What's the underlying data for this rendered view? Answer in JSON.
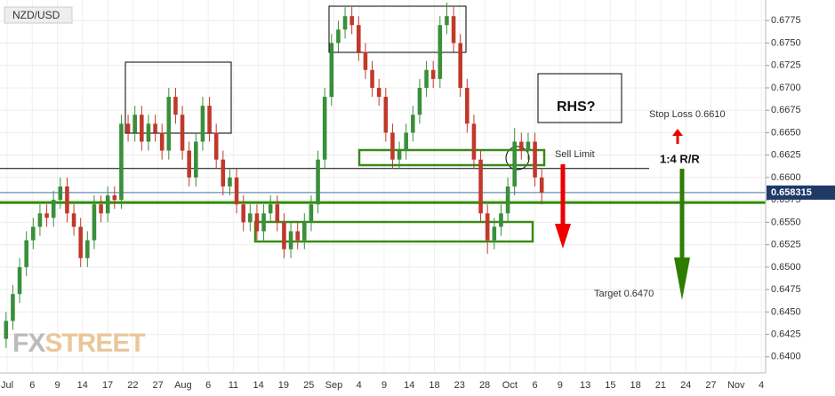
{
  "chart_data": {
    "type": "candlestick",
    "title": "NZD/USD",
    "ylim": [
      0.6382,
      0.6798
    ],
    "yticks": [
      {
        "value": 0.64,
        "label": "0.6400"
      },
      {
        "value": 0.6425,
        "label": "0.6425"
      },
      {
        "value": 0.645,
        "label": "0.6450"
      },
      {
        "value": 0.6475,
        "label": "0.6475"
      },
      {
        "value": 0.65,
        "label": "0.6500"
      },
      {
        "value": 0.6525,
        "label": "0.6525"
      },
      {
        "value": 0.655,
        "label": "0.6550"
      },
      {
        "value": 0.6575,
        "label": "0.6575"
      },
      {
        "value": 0.66,
        "label": "0.6600"
      },
      {
        "value": 0.6625,
        "label": "0.6625"
      },
      {
        "value": 0.665,
        "label": "0.6650"
      },
      {
        "value": 0.6675,
        "label": "0.6675"
      },
      {
        "value": 0.67,
        "label": "0.6700"
      },
      {
        "value": 0.6725,
        "label": "0.6725"
      },
      {
        "value": 0.675,
        "label": "0.6750"
      },
      {
        "value": 0.6775,
        "label": "0.6775"
      }
    ],
    "x_labels": [
      "Jul",
      "6",
      "9",
      "14",
      "17",
      "22",
      "27",
      "Aug",
      "6",
      "11",
      "14",
      "19",
      "25",
      "Sep",
      "4",
      "9",
      "14",
      "18",
      "23",
      "28",
      "Oct",
      "6",
      "9",
      "13",
      "15",
      "18",
      "21",
      "24",
      "27",
      "Nov",
      "4"
    ],
    "up_color": "#3a8f3a",
    "down_color": "#c0392b",
    "open": [
      0.642,
      0.644,
      0.647,
      0.65,
      0.653,
      0.6545,
      0.656,
      0.6555,
      0.6575,
      0.659,
      0.656,
      0.6545,
      0.651,
      0.653,
      0.657,
      0.656,
      0.658,
      0.6575,
      0.666,
      0.665,
      0.667,
      0.664,
      0.666,
      0.665,
      0.663,
      0.669,
      0.667,
      0.663,
      0.66,
      0.664,
      0.668,
      0.665,
      0.662,
      0.659,
      0.66,
      0.657,
      0.655,
      0.656,
      0.654,
      0.656,
      0.657,
      0.655,
      0.652,
      0.654,
      0.653,
      0.655,
      0.657,
      0.662,
      0.669,
      0.675,
      0.6765,
      0.678,
      0.677,
      0.674,
      0.672,
      0.67,
      0.669,
      0.665,
      0.662,
      0.663,
      0.665,
      0.667,
      0.67,
      0.672,
      0.671,
      0.677,
      0.678,
      0.675,
      0.67,
      0.666,
      0.662,
      0.656,
      0.653,
      0.6545,
      0.656,
      0.659,
      0.664,
      0.663,
      0.664,
      0.66
    ],
    "high": [
      0.645,
      0.648,
      0.651,
      0.654,
      0.6555,
      0.657,
      0.657,
      0.6585,
      0.66,
      0.66,
      0.657,
      0.6555,
      0.654,
      0.658,
      0.658,
      0.659,
      0.659,
      0.667,
      0.667,
      0.668,
      0.668,
      0.667,
      0.667,
      0.666,
      0.67,
      0.67,
      0.668,
      0.664,
      0.665,
      0.669,
      0.669,
      0.666,
      0.663,
      0.661,
      0.661,
      0.658,
      0.657,
      0.657,
      0.657,
      0.658,
      0.658,
      0.656,
      0.655,
      0.655,
      0.656,
      0.658,
      0.663,
      0.67,
      0.676,
      0.6775,
      0.679,
      0.679,
      0.678,
      0.675,
      0.673,
      0.671,
      0.67,
      0.666,
      0.664,
      0.666,
      0.668,
      0.671,
      0.673,
      0.673,
      0.678,
      0.6795,
      0.679,
      0.676,
      0.671,
      0.667,
      0.663,
      0.657,
      0.6555,
      0.657,
      0.66,
      0.6655,
      0.665,
      0.665,
      0.665,
      0.661
    ],
    "low": [
      0.641,
      0.643,
      0.646,
      0.649,
      0.652,
      0.6535,
      0.6545,
      0.6545,
      0.6565,
      0.655,
      0.6535,
      0.65,
      0.65,
      0.652,
      0.655,
      0.655,
      0.6565,
      0.6565,
      0.664,
      0.664,
      0.663,
      0.663,
      0.664,
      0.662,
      0.662,
      0.666,
      0.662,
      0.659,
      0.659,
      0.663,
      0.664,
      0.661,
      0.658,
      0.658,
      0.656,
      0.654,
      0.654,
      0.653,
      0.653,
      0.655,
      0.654,
      0.651,
      0.651,
      0.652,
      0.652,
      0.654,
      0.656,
      0.661,
      0.668,
      0.674,
      0.6755,
      0.676,
      0.673,
      0.671,
      0.669,
      0.668,
      0.664,
      0.661,
      0.661,
      0.662,
      0.664,
      0.666,
      0.669,
      0.67,
      0.67,
      0.676,
      0.674,
      0.669,
      0.665,
      0.661,
      0.655,
      0.6515,
      0.652,
      0.6535,
      0.655,
      0.658,
      0.662,
      0.662,
      0.659,
      0.657
    ],
    "close": [
      0.644,
      0.647,
      0.65,
      0.653,
      0.6545,
      0.656,
      0.6555,
      0.6575,
      0.659,
      0.656,
      0.6545,
      0.651,
      0.653,
      0.657,
      0.656,
      0.658,
      0.6575,
      0.666,
      0.665,
      0.667,
      0.664,
      0.666,
      0.665,
      0.663,
      0.669,
      0.667,
      0.663,
      0.66,
      0.664,
      0.668,
      0.665,
      0.662,
      0.659,
      0.66,
      0.657,
      0.655,
      0.656,
      0.654,
      0.656,
      0.657,
      0.655,
      0.652,
      0.654,
      0.653,
      0.655,
      0.657,
      0.662,
      0.669,
      0.675,
      0.6765,
      0.678,
      0.677,
      0.674,
      0.672,
      0.67,
      0.669,
      0.665,
      0.662,
      0.663,
      0.665,
      0.667,
      0.67,
      0.672,
      0.671,
      0.677,
      0.678,
      0.675,
      0.67,
      0.666,
      0.662,
      0.656,
      0.653,
      0.6545,
      0.656,
      0.659,
      0.664,
      0.663,
      0.664,
      0.66,
      0.6583
    ],
    "last_price": 0.658315,
    "levels": [
      {
        "value": 0.661,
        "color": "#000000"
      },
      {
        "value": 0.6572,
        "color": "#2e8b00"
      }
    ],
    "annotations": {
      "pattern": "RHS?",
      "stop": "Stop Loss 0.6610",
      "entry": "Sell Limit",
      "ratio": "1:4 R/R",
      "target": "Target  0.6470"
    },
    "watermark": {
      "a": "FX",
      "b": "STREET"
    }
  }
}
